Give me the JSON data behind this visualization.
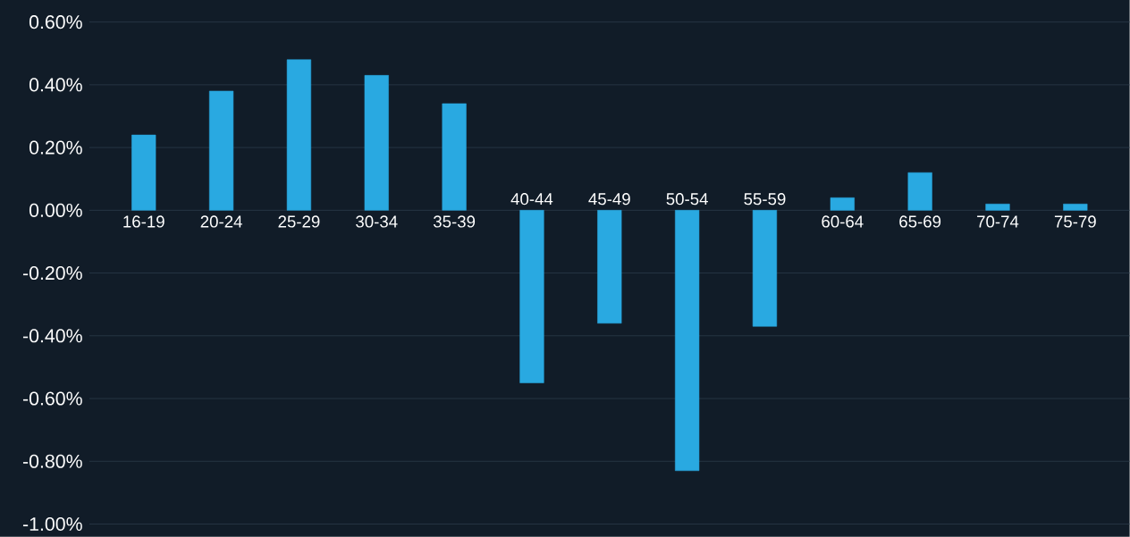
{
  "chart_data": {
    "type": "bar",
    "categories": [
      "16-19",
      "20-24",
      "25-29",
      "30-34",
      "35-39",
      "40-44",
      "45-49",
      "50-54",
      "55-59",
      "60-64",
      "65-69",
      "70-74",
      "75-79"
    ],
    "values": [
      0.24,
      0.38,
      0.48,
      0.43,
      0.34,
      -0.55,
      -0.36,
      -0.83,
      -0.37,
      0.04,
      0.12,
      0.02,
      0.02
    ],
    "color": "#29a9e1",
    "ylim": [
      -1.0,
      0.6
    ],
    "yticks": [
      {
        "value": 0.6,
        "label": "0.60%"
      },
      {
        "value": 0.4,
        "label": "0.40%"
      },
      {
        "value": 0.2,
        "label": "0.20%"
      },
      {
        "value": 0.0,
        "label": "0.00%"
      },
      {
        "value": -0.2,
        "label": "-0.20%"
      },
      {
        "value": -0.4,
        "label": "-0.40%"
      },
      {
        "value": -0.6,
        "label": "-0.60%"
      },
      {
        "value": -0.8,
        "label": "-0.80%"
      },
      {
        "value": -1.0,
        "label": "-1.00%"
      }
    ],
    "grid": "y"
  }
}
